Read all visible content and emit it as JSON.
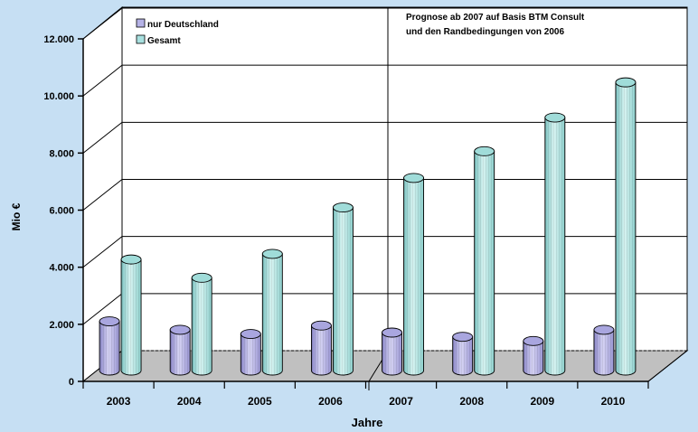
{
  "chart_data": {
    "type": "bar",
    "title": "",
    "xlabel": "Jahre",
    "ylabel": "Mio €",
    "categories": [
      "2003",
      "2004",
      "2005",
      "2006",
      "2007",
      "2008",
      "2009",
      "2010"
    ],
    "series": [
      {
        "name": "nur Deutschland",
        "color": "#b5b2e6",
        "values": [
          1750,
          1450,
          1300,
          1600,
          1350,
          1200,
          1050,
          1450
        ]
      },
      {
        "name": "Gesamt",
        "color": "#a8e0df",
        "values": [
          3950,
          3300,
          4150,
          5800,
          6850,
          7800,
          9000,
          10250
        ]
      }
    ],
    "ylim": [
      0,
      12000
    ],
    "yticks": [
      "0",
      "2.000",
      "4.000",
      "6.000",
      "8.000",
      "10.000",
      "12.000"
    ],
    "grid": true,
    "legend_position": "top-left",
    "annotation": {
      "lines": [
        "Prognose ab 2007 auf Basis BTM Consult",
        "und den Randbedingungen von 2006"
      ]
    },
    "style": {
      "background": "#c6dff3",
      "plot_background": "#ffffff",
      "floor_color": "#c0c0c0"
    }
  }
}
